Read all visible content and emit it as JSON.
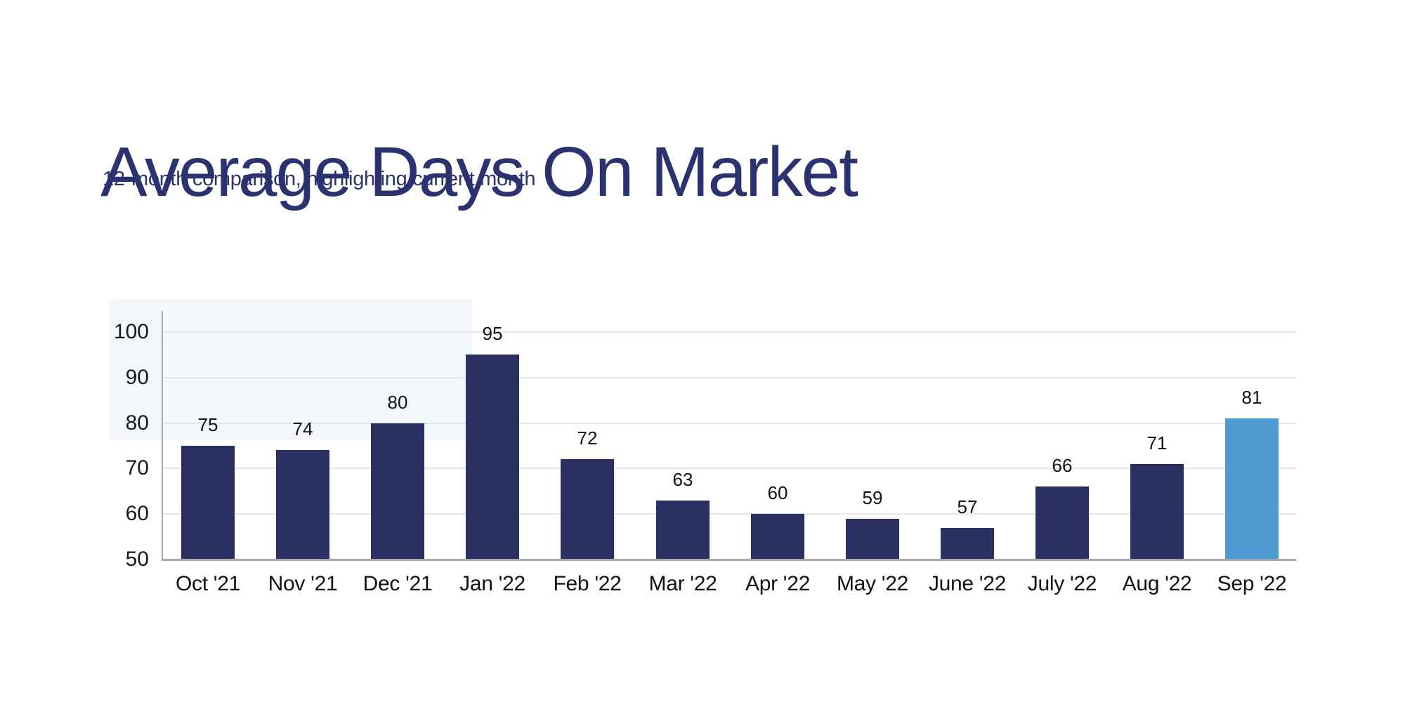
{
  "header": {
    "title": "Average Days On Market",
    "subtitle": "12-month comparison, highlighting current month"
  },
  "chart_data": {
    "type": "bar",
    "title": "Average Days On Market",
    "subtitle": "12-month comparison, highlighting current month",
    "categories": [
      "Oct '21",
      "Nov '21",
      "Dec '21",
      "Jan '22",
      "Feb '22",
      "Mar '22",
      "Apr '22",
      "May '22",
      "June '22",
      "July '22",
      "Aug '22",
      "Sep '22"
    ],
    "values": [
      75,
      74,
      80,
      95,
      72,
      63,
      60,
      59,
      57,
      66,
      71,
      81
    ],
    "highlight_index": 11,
    "highlight_category": "Sep '22",
    "y_ticks": [
      50,
      60,
      70,
      80,
      90,
      100
    ],
    "ylim": [
      50,
      100
    ],
    "xlabel": "",
    "ylabel": "",
    "grid": "horizontal",
    "legend": "none",
    "value_labels": "above-bars",
    "colors": {
      "bar": "#2a3162",
      "highlight_bar": "#4f9ad2",
      "title_text": "#2b3270",
      "axis_line": "#a6aaae",
      "gridline": "#dde6f1",
      "tick_text": "#1a1a1a"
    }
  }
}
